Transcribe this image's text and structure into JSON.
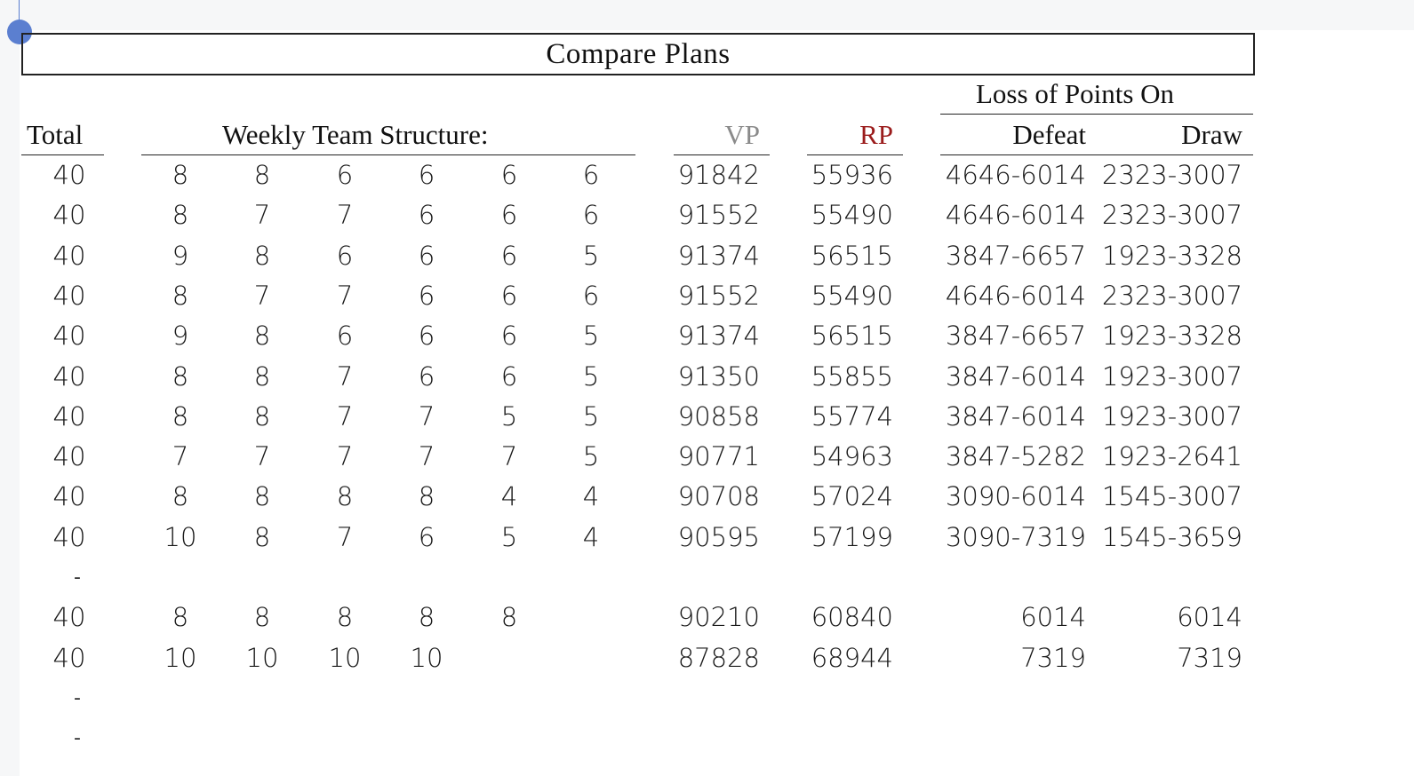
{
  "title": "Compare Plans",
  "headers": {
    "total": "Total",
    "structure": "Weekly Team Structure:",
    "vp": "VP",
    "rp": "RP",
    "loss_group": "Loss of Points On",
    "defeat": "Defeat",
    "draw": "Draw"
  },
  "colors": {
    "vp": "#8a8a8a",
    "rp": "#9b1c1c",
    "selection": "#5b7fd0"
  },
  "rows": [
    {
      "total": "40",
      "teams": [
        "8",
        "8",
        "6",
        "6",
        "6",
        "6"
      ],
      "vp": "91842",
      "rp": "55936",
      "defeat": "4646-6014",
      "draw": "2323-3007"
    },
    {
      "total": "40",
      "teams": [
        "8",
        "7",
        "7",
        "6",
        "6",
        "6"
      ],
      "vp": "91552",
      "rp": "55490",
      "defeat": "4646-6014",
      "draw": "2323-3007"
    },
    {
      "total": "40",
      "teams": [
        "9",
        "8",
        "6",
        "6",
        "6",
        "5"
      ],
      "vp": "91374",
      "rp": "56515",
      "defeat": "3847-6657",
      "draw": "1923-3328"
    },
    {
      "total": "40",
      "teams": [
        "8",
        "7",
        "7",
        "6",
        "6",
        "6"
      ],
      "vp": "91552",
      "rp": "55490",
      "defeat": "4646-6014",
      "draw": "2323-3007"
    },
    {
      "total": "40",
      "teams": [
        "9",
        "8",
        "6",
        "6",
        "6",
        "5"
      ],
      "vp": "91374",
      "rp": "56515",
      "defeat": "3847-6657",
      "draw": "1923-3328"
    },
    {
      "total": "40",
      "teams": [
        "8",
        "8",
        "7",
        "6",
        "6",
        "5"
      ],
      "vp": "91350",
      "rp": "55855",
      "defeat": "3847-6014",
      "draw": "1923-3007"
    },
    {
      "total": "40",
      "teams": [
        "8",
        "8",
        "7",
        "7",
        "5",
        "5"
      ],
      "vp": "90858",
      "rp": "55774",
      "defeat": "3847-6014",
      "draw": "1923-3007"
    },
    {
      "total": "40",
      "teams": [
        "7",
        "7",
        "7",
        "7",
        "7",
        "5"
      ],
      "vp": "90771",
      "rp": "54963",
      "defeat": "3847-5282",
      "draw": "1923-2641"
    },
    {
      "total": "40",
      "teams": [
        "8",
        "8",
        "8",
        "8",
        "4",
        "4"
      ],
      "vp": "90708",
      "rp": "57024",
      "defeat": "3090-6014",
      "draw": "1545-3007"
    },
    {
      "total": "40",
      "teams": [
        "10",
        "8",
        "7",
        "6",
        "5",
        "4"
      ],
      "vp": "90595",
      "rp": "57199",
      "defeat": "3090-7319",
      "draw": "1545-3659"
    },
    {
      "dash": "-"
    },
    {
      "total": "40",
      "teams": [
        "8",
        "8",
        "8",
        "8",
        "8",
        ""
      ],
      "vp": "90210",
      "rp": "60840",
      "defeat": "6014",
      "draw": "6014"
    },
    {
      "total": "40",
      "teams": [
        "10",
        "10",
        "10",
        "10",
        "",
        ""
      ],
      "vp": "87828",
      "rp": "68944",
      "defeat": "7319",
      "draw": "7319"
    },
    {
      "dash": "-"
    },
    {
      "dash": "-"
    }
  ]
}
